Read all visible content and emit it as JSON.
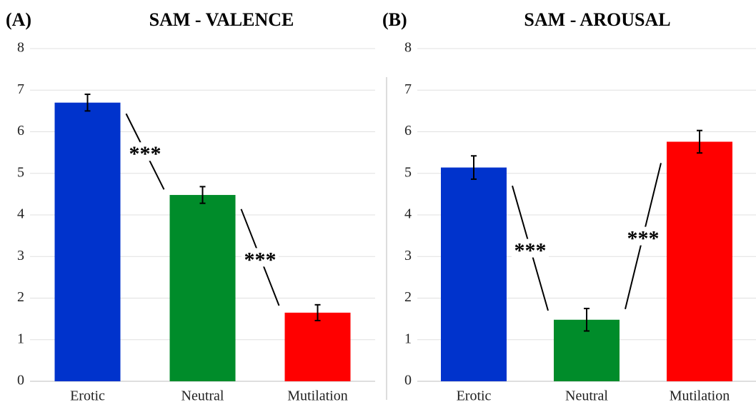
{
  "chart_data": [
    {
      "type": "bar",
      "panel_label": "(A)",
      "title": "SAM - VALENCE",
      "categories": [
        "Erotic",
        "Neutral",
        "Mutilation"
      ],
      "values": [
        6.7,
        4.48,
        1.65
      ],
      "errors": [
        0.2,
        0.2,
        0.19
      ],
      "colors": [
        "#0033cc",
        "#008c2a",
        "#ff0000"
      ],
      "ylim": [
        0,
        8
      ],
      "yticks": [
        0,
        1,
        2,
        3,
        4,
        5,
        6,
        7,
        8
      ],
      "grid": true,
      "annotations": [
        "***",
        "***"
      ]
    },
    {
      "type": "bar",
      "panel_label": "(B)",
      "title": "SAM - AROUSAL",
      "categories": [
        "Erotic",
        "Neutral",
        "Mutilation"
      ],
      "values": [
        5.14,
        1.48,
        5.76
      ],
      "errors": [
        0.28,
        0.27,
        0.27
      ],
      "colors": [
        "#0033cc",
        "#008c2a",
        "#ff0000"
      ],
      "ylim": [
        0,
        8
      ],
      "yticks": [
        0,
        1,
        2,
        3,
        4,
        5,
        6,
        7,
        8
      ],
      "grid": true,
      "annotations": [
        "***",
        "***"
      ]
    }
  ]
}
